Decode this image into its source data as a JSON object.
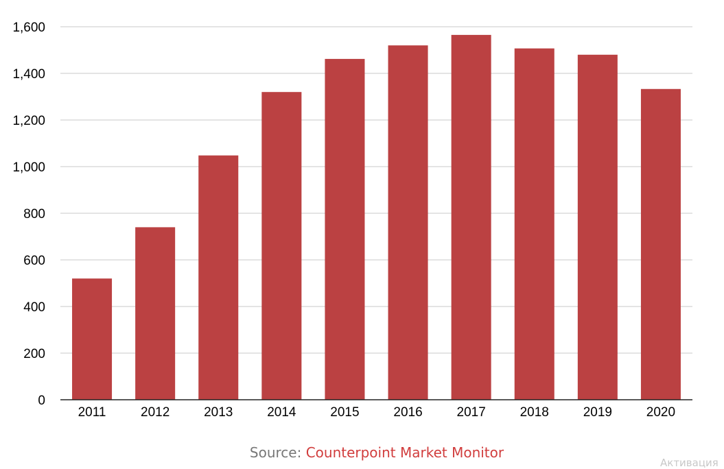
{
  "chart_data": {
    "type": "bar",
    "categories": [
      "2011",
      "2012",
      "2013",
      "2014",
      "2015",
      "2016",
      "2017",
      "2018",
      "2019",
      "2020"
    ],
    "values": [
      520,
      740,
      1048,
      1320,
      1462,
      1520,
      1565,
      1507,
      1480,
      1333
    ],
    "ylim": [
      0,
      1600
    ],
    "yticks": [
      0,
      200,
      400,
      600,
      800,
      1000,
      1200,
      1400,
      1600
    ],
    "ytick_labels": [
      "0",
      "200",
      "400",
      "600",
      "800",
      "1,000",
      "1,200",
      "1,400",
      "1,600"
    ],
    "title": "",
    "xlabel": "",
    "ylabel": "",
    "grid": true,
    "legend": "none",
    "bar_color": "#bb4142"
  },
  "source": {
    "prefix": "Source:",
    "name": "Counterpoint Market Monitor"
  },
  "watermark": "Активация"
}
